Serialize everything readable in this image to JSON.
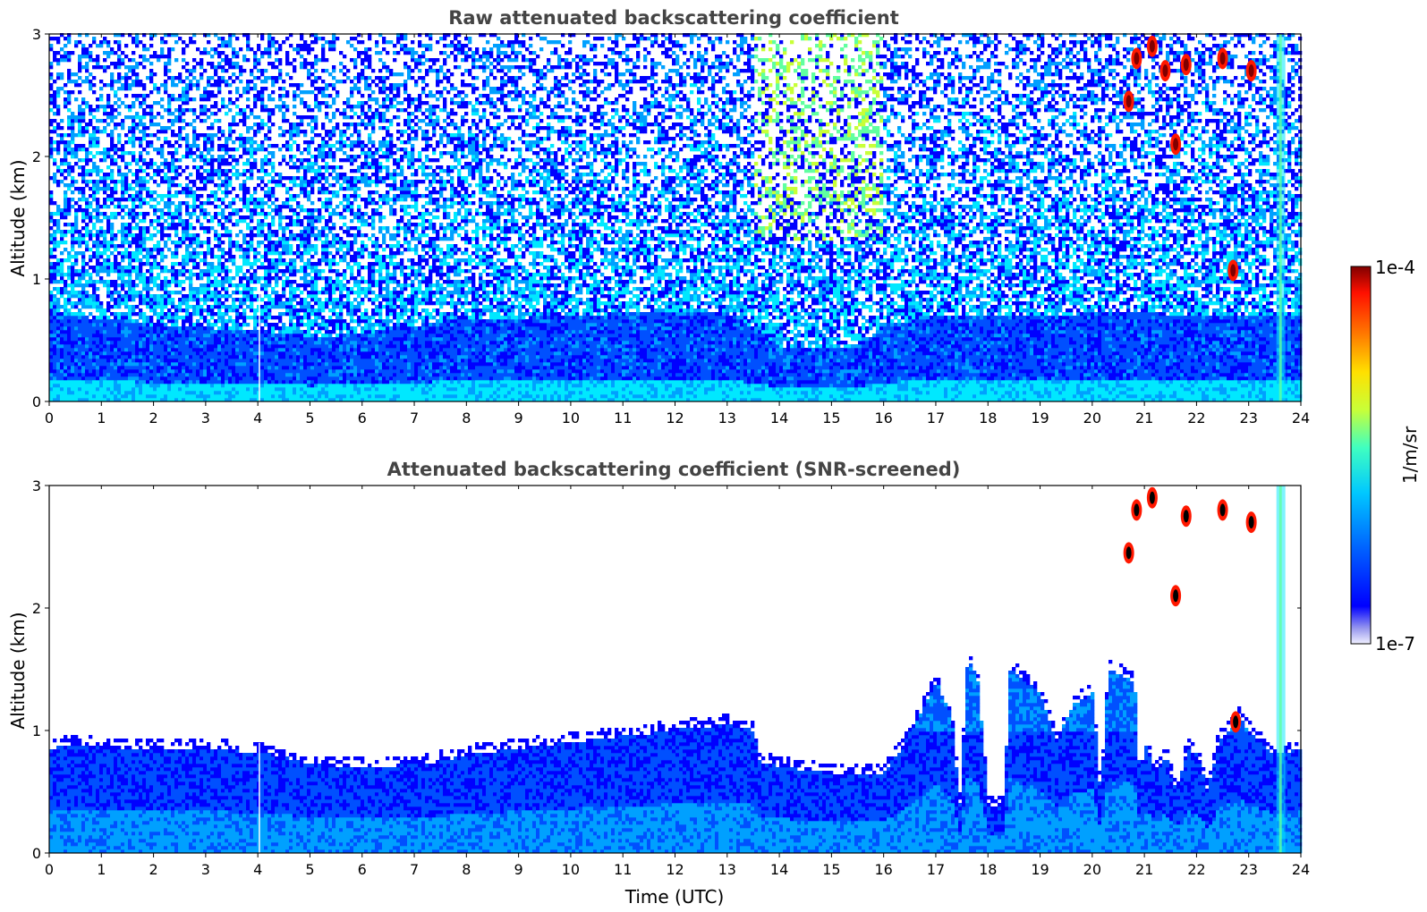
{
  "colors": {
    "jet": [
      "#f0f0ff",
      "#c8c8f8",
      "#9999ee",
      "#0000ff",
      "#0050ff",
      "#00a0ff",
      "#00e8ff",
      "#60ffa0",
      "#c8ff38",
      "#ffd000",
      "#ff7000",
      "#ff1800",
      "#800000"
    ],
    "frame": "#000000",
    "title": "#444444"
  },
  "colorbar": {
    "label": "1/m/sr",
    "top_label": "1e-4",
    "bottom_label": "1e-7",
    "scale": "log",
    "range": [
      1e-07,
      0.0001
    ]
  },
  "chart_data": [
    {
      "type": "heatmap",
      "title": "Raw attenuated backscattering coefficient",
      "xlabel": "",
      "ylabel": "Altitude (km)",
      "xlim": [
        0,
        24
      ],
      "ylim": [
        0,
        3
      ],
      "x_ticks": [
        "0",
        "1",
        "2",
        "3",
        "4",
        "5",
        "6",
        "7",
        "8",
        "9",
        "10",
        "11",
        "12",
        "13",
        "14",
        "15",
        "16",
        "17",
        "18",
        "19",
        "20",
        "21",
        "22",
        "23",
        "24"
      ],
      "y_ticks": [
        "0",
        "1",
        "2",
        "3"
      ],
      "colormap": "jet",
      "boundary_layer_top_km": {
        "x": [
          0,
          1,
          2,
          3,
          4,
          5,
          6,
          7,
          8,
          9,
          10,
          11,
          12,
          13,
          13.5,
          14,
          15,
          15.5,
          16,
          17,
          18,
          19,
          20,
          21,
          22,
          23,
          24
        ],
        "y": [
          0.7,
          0.68,
          0.62,
          0.6,
          0.58,
          0.52,
          0.55,
          0.62,
          0.68,
          0.68,
          0.7,
          0.72,
          0.73,
          0.72,
          0.6,
          0.45,
          0.45,
          0.45,
          0.62,
          0.7,
          0.7,
          0.7,
          0.72,
          0.72,
          0.7,
          0.7,
          0.7
        ]
      },
      "aerosol_layer_time_range": [
        13.5,
        16
      ],
      "clouds": [
        {
          "t": 20.85,
          "z": 2.8
        },
        {
          "t": 21.15,
          "z": 2.9
        },
        {
          "t": 21.4,
          "z": 2.7
        },
        {
          "t": 21.8,
          "z": 2.75
        },
        {
          "t": 20.7,
          "z": 2.45
        },
        {
          "t": 21.6,
          "z": 2.1
        },
        {
          "t": 22.5,
          "z": 2.8
        },
        {
          "t": 22.7,
          "z": 1.07
        },
        {
          "t": 23.05,
          "z": 2.7
        }
      ]
    },
    {
      "type": "heatmap",
      "title": "Attenuated backscattering coefficient (SNR-screened)",
      "xlabel": "Time (UTC)",
      "ylabel": "Altitude (km)",
      "xlim": [
        0,
        24
      ],
      "ylim": [
        0,
        3
      ],
      "x_ticks": [
        "0",
        "1",
        "2",
        "3",
        "4",
        "5",
        "6",
        "7",
        "8",
        "9",
        "10",
        "11",
        "12",
        "13",
        "14",
        "15",
        "16",
        "17",
        "18",
        "19",
        "20",
        "21",
        "22",
        "23",
        "24"
      ],
      "y_ticks": [
        "0",
        "1",
        "2",
        "3"
      ],
      "colormap": "jet",
      "signal_top_km": {
        "x": [
          0,
          0.5,
          1,
          2,
          3,
          4,
          4.5,
          5,
          6,
          7,
          7.5,
          8,
          9,
          10,
          11,
          12,
          13,
          13.5,
          13.6,
          14,
          15,
          16,
          16.4,
          17,
          17.3,
          17.45,
          17.6,
          17.8,
          18,
          18.3,
          18.4,
          19,
          19.3,
          19.6,
          20,
          20.15,
          20.3,
          20.8,
          20.9,
          21.0,
          21.2,
          21.4,
          21.6,
          21.8,
          22.0,
          22.2,
          22.4,
          22.8,
          23.2,
          23.5,
          24
        ],
        "y": [
          0.85,
          0.88,
          0.86,
          0.84,
          0.85,
          0.82,
          0.78,
          0.72,
          0.7,
          0.72,
          0.75,
          0.8,
          0.85,
          0.9,
          0.95,
          1.0,
          1.05,
          1.0,
          0.75,
          0.7,
          0.65,
          0.65,
          0.9,
          1.4,
          1.1,
          0.4,
          1.6,
          1.4,
          0.38,
          0.38,
          1.5,
          1.3,
          0.9,
          1.2,
          1.3,
          0.45,
          1.5,
          1.4,
          0.6,
          0.9,
          0.65,
          0.8,
          0.5,
          0.85,
          0.8,
          0.5,
          0.9,
          1.1,
          0.9,
          0.8,
          0.85
        ]
      },
      "clouds": [
        {
          "t": 20.85,
          "z": 2.8
        },
        {
          "t": 21.15,
          "z": 2.9
        },
        {
          "t": 21.8,
          "z": 2.75
        },
        {
          "t": 20.7,
          "z": 2.45
        },
        {
          "t": 21.6,
          "z": 2.1
        },
        {
          "t": 22.5,
          "z": 2.8
        },
        {
          "t": 22.75,
          "z": 1.07
        },
        {
          "t": 23.05,
          "z": 2.7
        }
      ]
    }
  ]
}
